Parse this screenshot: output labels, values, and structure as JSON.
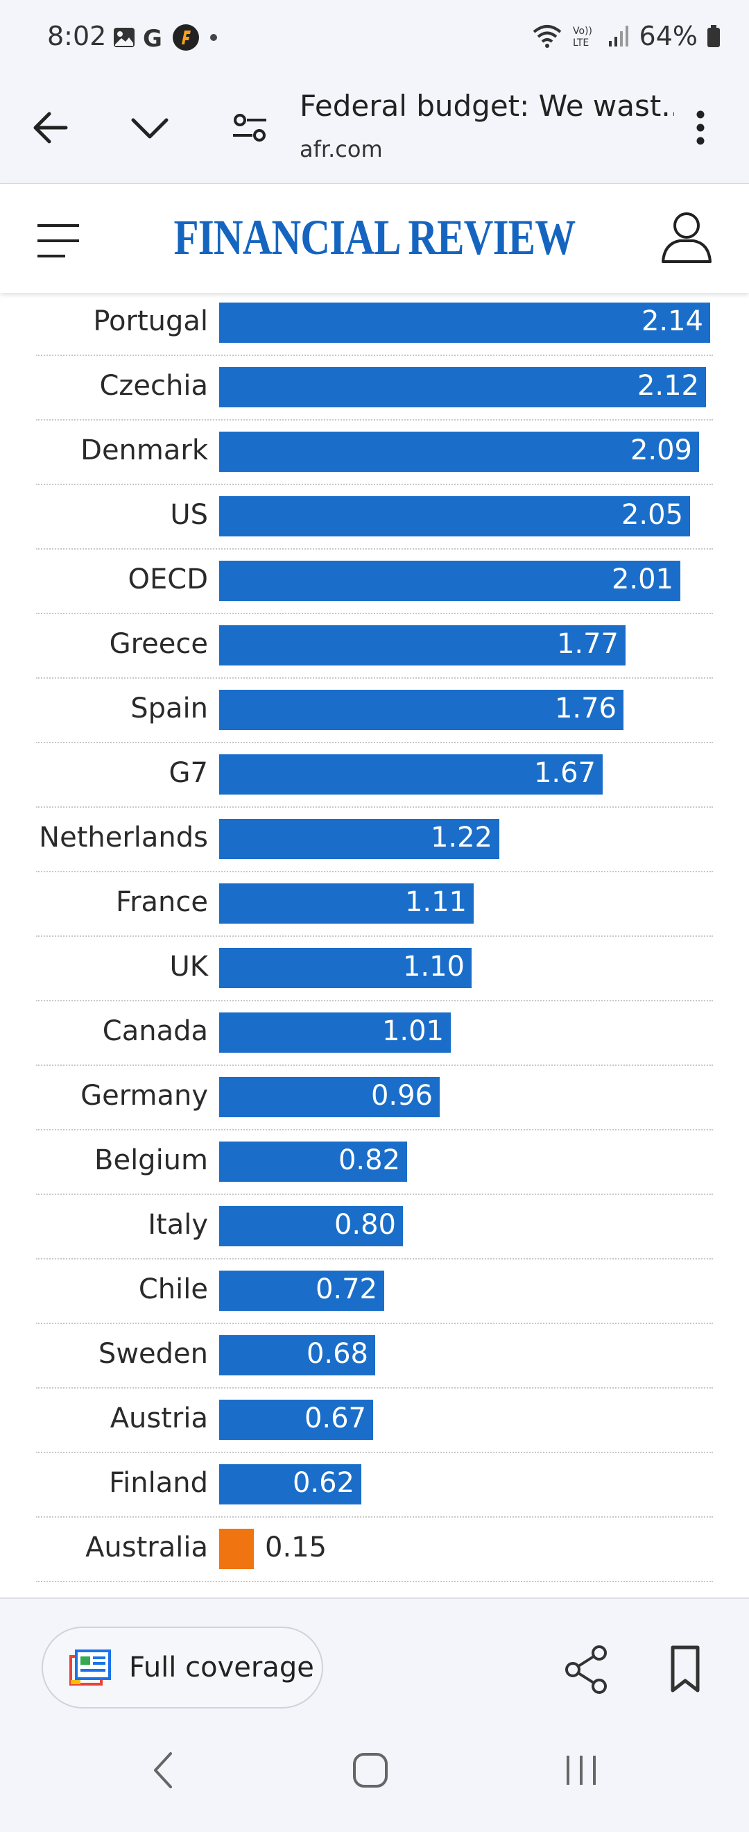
{
  "status_bar": {
    "time": "8:02",
    "battery": "64%",
    "network_label": "Vo)) LTE"
  },
  "browser": {
    "page_title": "Federal budget: We wast...",
    "url": "afr.com"
  },
  "site": {
    "logo_text": "FINANCIAL REVIEW"
  },
  "chart_data": {
    "type": "bar",
    "orientation": "horizontal",
    "categories": [
      "Portugal",
      "Czechia",
      "Denmark",
      "US",
      "OECD",
      "Greece",
      "Spain",
      "G7",
      "Netherlands",
      "France",
      "UK",
      "Canada",
      "Germany",
      "Belgium",
      "Italy",
      "Chile",
      "Sweden",
      "Austria",
      "Finland",
      "Australia"
    ],
    "values": [
      2.14,
      2.12,
      2.09,
      2.05,
      2.01,
      1.77,
      1.76,
      1.67,
      1.22,
      1.11,
      1.1,
      1.01,
      0.96,
      0.82,
      0.8,
      0.72,
      0.68,
      0.67,
      0.62,
      0.15
    ],
    "value_labels": [
      "2.14",
      "2.12",
      "2.09",
      "2.05",
      "2.01",
      "1.77",
      "1.76",
      "1.67",
      "1.22",
      "1.11",
      "1.10",
      "1.01",
      "0.96",
      "0.82",
      "0.80",
      "0.72",
      "0.68",
      "0.67",
      "0.62",
      "0.15"
    ],
    "highlight_category": "Australia",
    "bar_color": "#1a6ec9",
    "highlight_color": "#f07410",
    "xlim": [
      0,
      2.2
    ],
    "grid": false,
    "legend": "none"
  },
  "bottom_bar": {
    "full_coverage_label": "Full coverage"
  }
}
